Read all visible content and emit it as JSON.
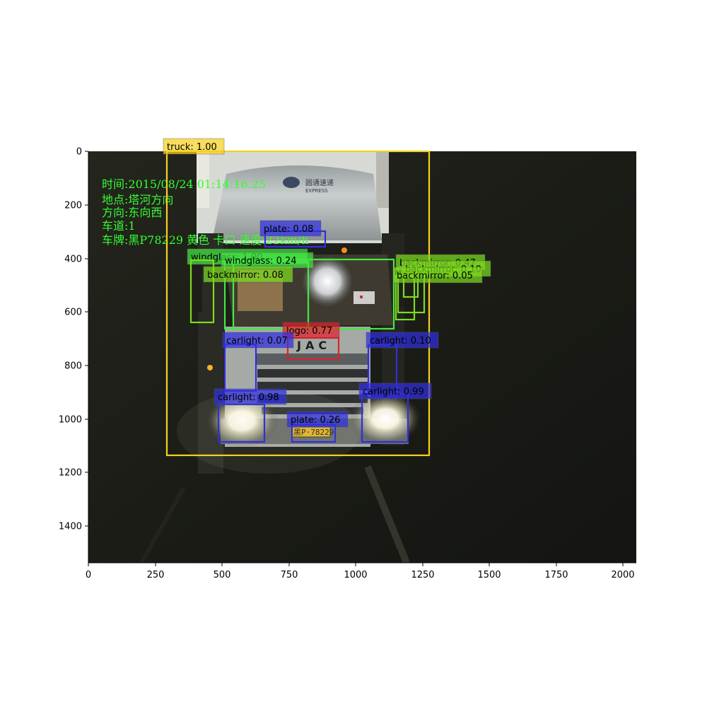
{
  "figure": {
    "x_ticks": [
      "0",
      "250",
      "500",
      "750",
      "1000",
      "1250",
      "1500",
      "1750",
      "2000"
    ],
    "y_ticks": [
      "0",
      "200",
      "400",
      "600",
      "800",
      "1000",
      "1200",
      "1400"
    ]
  },
  "overlay_lines": [
    "时间:2015/08/24 01:14:16.25",
    "地点:塔河方向",
    "方向:东向西",
    "车道:1",
    "车牌:黑P78229 黄色 卡口 速度:22km/h"
  ],
  "scene": {
    "truck_brand": "JAC",
    "truck_logo_text": "圆通速递",
    "truck_logo_subtext": "EXPRESS",
    "plate_text": "黑P·78229",
    "description": "night-time traffic camera capture of a front-facing truck with bright headlights"
  },
  "detections": [
    {
      "label": "truck: 1.00",
      "category": "truck",
      "color": "#f5d020"
    },
    {
      "label": "plate: 0.08",
      "category": "plate",
      "color": "#2f2fe0"
    },
    {
      "label": "windglass: 1.00",
      "category": "windglass",
      "color": "#44e844"
    },
    {
      "label": "windglass: 0.24",
      "category": "windglass",
      "color": "#44e844"
    },
    {
      "label": "backmirror: 0.08",
      "category": "backmirror",
      "color": "#7ddc1f"
    },
    {
      "label": "backmirror: 0.47",
      "category": "backmirror",
      "color": "#7ddc1f"
    },
    {
      "label": "backmirror: 0.10",
      "category": "backmirror",
      "color": "#7ddc1f"
    },
    {
      "label": "backmirror: 0.05",
      "category": "backmirror",
      "color": "#7ddc1f"
    },
    {
      "label": "logo: 0.77",
      "category": "logo",
      "color": "#e0202a"
    },
    {
      "label": "carlight: 0.07",
      "category": "carlight",
      "color": "#2f2fe0"
    },
    {
      "label": "carlight: 0.10",
      "category": "carlight",
      "color": "#2f2fe0"
    },
    {
      "label": "carlight: 0.98",
      "category": "carlight",
      "color": "#2f2fe0"
    },
    {
      "label": "carlight: 0.99",
      "category": "carlight",
      "color": "#2f2fe0"
    },
    {
      "label": "plate: 0.26",
      "category": "plate",
      "color": "#2f2fe0"
    }
  ]
}
